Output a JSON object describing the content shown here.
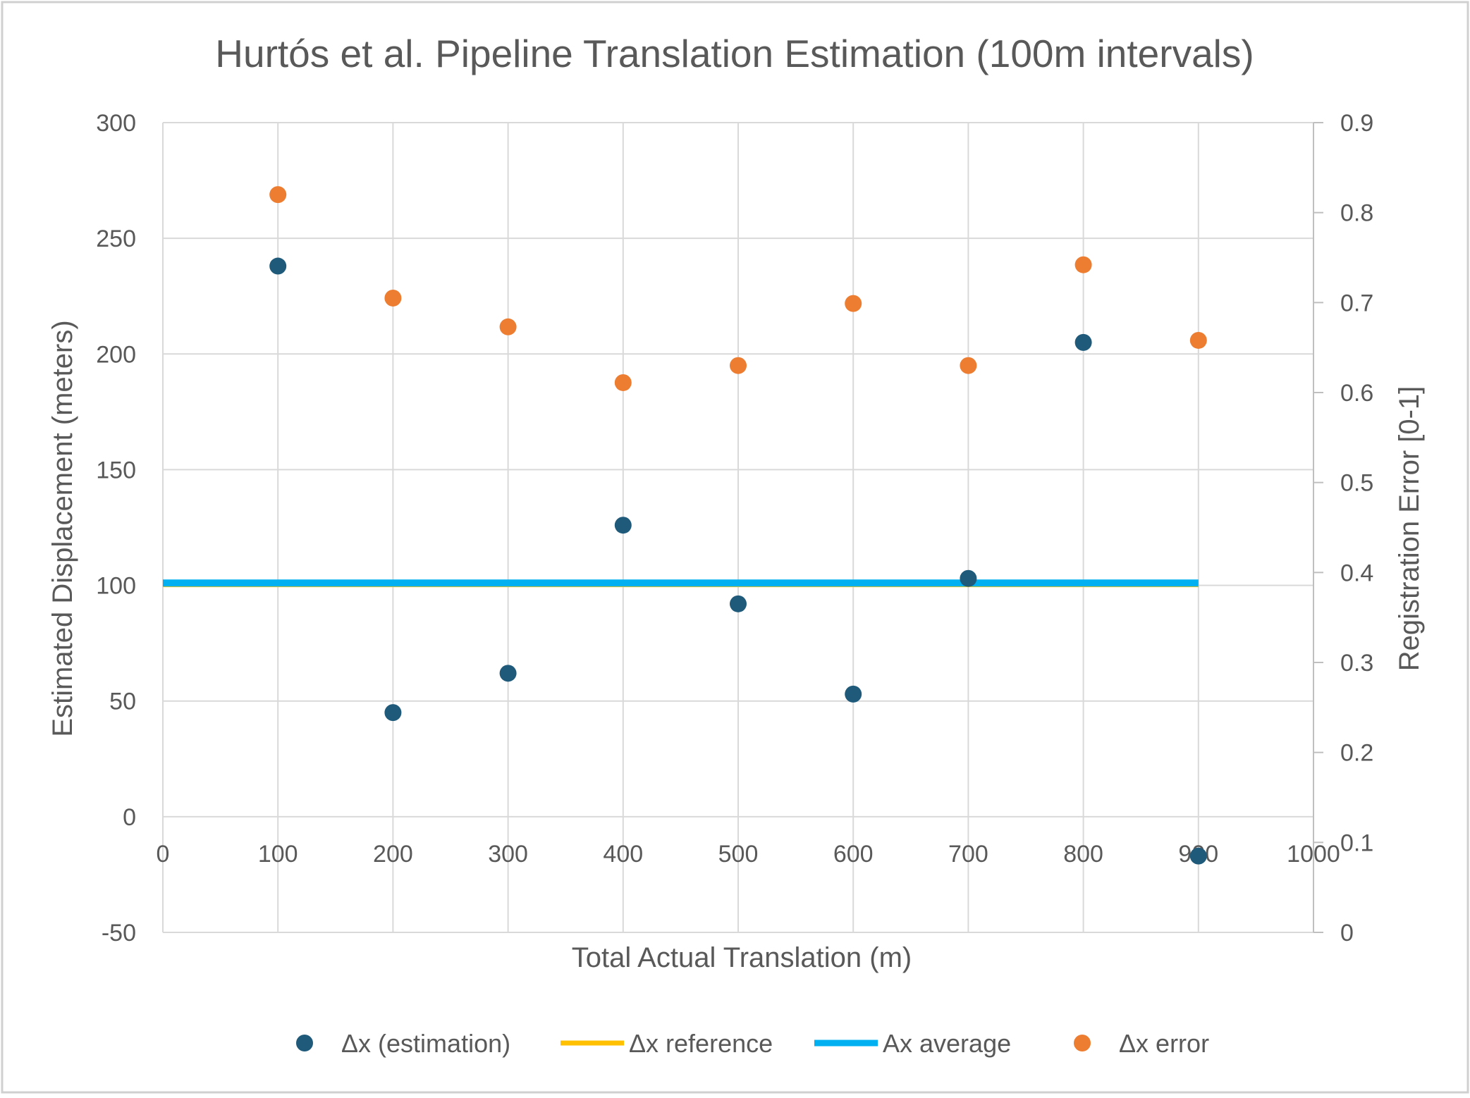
{
  "chart_data": {
    "type": "scatter",
    "title": "Hurtós et al. Pipeline Translation Estimation (100m intervals)",
    "xlabel": "Total Actual Translation (m)",
    "ylabel": "Estimated Displacement (meters)",
    "y2label": "Registration Error [0-1]",
    "xlim": [
      0,
      1000
    ],
    "ylim": [
      -50,
      300
    ],
    "y2lim": [
      0,
      0.9
    ],
    "x_ticks": [
      "0",
      "100",
      "200",
      "300",
      "400",
      "500",
      "600",
      "700",
      "800",
      "900",
      "1000"
    ],
    "y_ticks": [
      "-50",
      "0",
      "50",
      "100",
      "150",
      "200",
      "250",
      "300"
    ],
    "y2_ticks": [
      "0",
      "0.1",
      "0.2",
      "0.3",
      "0.4",
      "0.5",
      "0.6",
      "0.7",
      "0.8",
      "0.9"
    ],
    "grid": true,
    "legend_position": "bottom",
    "series": [
      {
        "name": "Δx (estimation)",
        "kind": "markers",
        "axis": "left",
        "color": "#1f5a7a",
        "x": [
          100,
          200,
          300,
          400,
          500,
          600,
          700,
          800,
          900
        ],
        "y": [
          238,
          45,
          62,
          126,
          92,
          53,
          103,
          205,
          -17
        ]
      },
      {
        "name": "Δx reference",
        "kind": "line",
        "axis": "left",
        "color": "#ffc000",
        "x": [
          0,
          900
        ],
        "y": [
          100,
          100
        ]
      },
      {
        "name": "Ax average",
        "kind": "line",
        "axis": "left",
        "color": "#00b0f0",
        "x": [
          0,
          900
        ],
        "y": [
          101,
          101
        ]
      },
      {
        "name": "Δx error",
        "kind": "markers",
        "axis": "right",
        "color": "#ed7d31",
        "x": [
          100,
          200,
          300,
          400,
          500,
          600,
          700,
          800,
          900
        ],
        "y": [
          0.82,
          0.705,
          0.673,
          0.611,
          0.63,
          0.699,
          0.63,
          0.742,
          0.658
        ]
      }
    ]
  }
}
